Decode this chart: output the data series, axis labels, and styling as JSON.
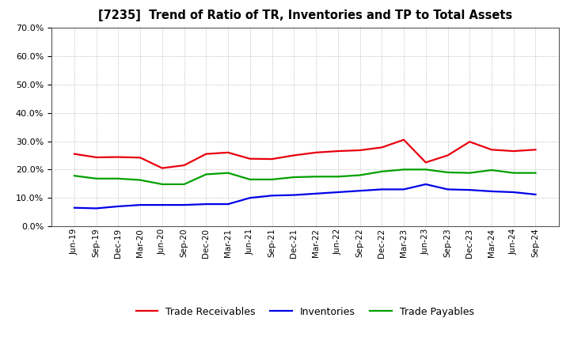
{
  "title": "[7235]  Trend of Ratio of TR, Inventories and TP to Total Assets",
  "x_labels": [
    "Jun-19",
    "Sep-19",
    "Dec-19",
    "Mar-20",
    "Jun-20",
    "Sep-20",
    "Dec-20",
    "Mar-21",
    "Jun-21",
    "Sep-21",
    "Dec-21",
    "Mar-22",
    "Jun-22",
    "Sep-22",
    "Dec-22",
    "Mar-23",
    "Jun-23",
    "Sep-23",
    "Dec-23",
    "Mar-24",
    "Jun-24",
    "Sep-24"
  ],
  "trade_receivables": [
    0.255,
    0.243,
    0.244,
    0.242,
    0.205,
    0.215,
    0.255,
    0.26,
    0.238,
    0.237,
    0.25,
    0.26,
    0.265,
    0.268,
    0.278,
    0.305,
    0.225,
    0.25,
    0.298,
    0.27,
    0.265,
    0.27
  ],
  "inventories": [
    0.065,
    0.063,
    0.07,
    0.075,
    0.075,
    0.075,
    0.078,
    0.078,
    0.1,
    0.108,
    0.11,
    0.115,
    0.12,
    0.125,
    0.13,
    0.13,
    0.148,
    0.13,
    0.128,
    0.123,
    0.12,
    0.112
  ],
  "trade_payables": [
    0.178,
    0.168,
    0.168,
    0.163,
    0.148,
    0.148,
    0.183,
    0.188,
    0.165,
    0.165,
    0.173,
    0.175,
    0.175,
    0.18,
    0.193,
    0.2,
    0.2,
    0.19,
    0.188,
    0.198,
    0.188,
    0.188
  ],
  "ylim": [
    0.0,
    0.7
  ],
  "yticks": [
    0.0,
    0.1,
    0.2,
    0.3,
    0.4,
    0.5,
    0.6,
    0.7
  ],
  "line_colors": {
    "trade_receivables": "#e8000d",
    "inventories": "#0000e8",
    "trade_payables": "#00a000"
  },
  "line_width": 1.6,
  "background_color": "#ffffff",
  "plot_bg_color": "#ffffff",
  "grid_color": "#aaaaaa",
  "legend_labels": [
    "Trade Receivables",
    "Inventories",
    "Trade Payables"
  ]
}
